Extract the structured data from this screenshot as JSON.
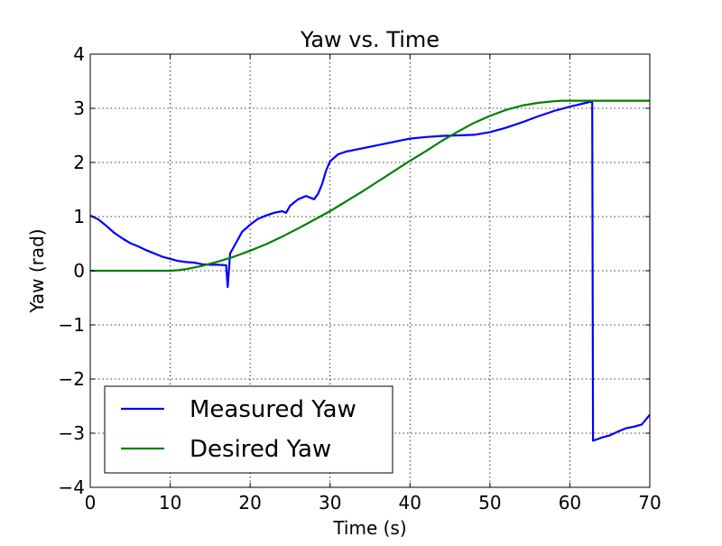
{
  "chart_data": {
    "type": "line",
    "title": "Yaw vs. Time",
    "xlabel": "Time (s)",
    "ylabel": "Yaw (rad)",
    "xlim": [
      0,
      70
    ],
    "ylim": [
      -4,
      4
    ],
    "xticks": [
      0,
      10,
      20,
      30,
      40,
      50,
      60,
      70
    ],
    "yticks": [
      4,
      3,
      2,
      1,
      0,
      -1,
      -2,
      -3,
      -4
    ],
    "xtick_labels": [
      "0",
      "10",
      "20",
      "30",
      "40",
      "50",
      "60",
      "70"
    ],
    "ytick_labels": [
      "4",
      "3",
      "2",
      "1",
      "0",
      "−1",
      "−2",
      "−3",
      "−4"
    ],
    "grid": true,
    "legend_position": "lower-left",
    "series": [
      {
        "name": "Measured Yaw",
        "color": "#0000ff",
        "points": [
          [
            0,
            1.02
          ],
          [
            1,
            0.95
          ],
          [
            2,
            0.83
          ],
          [
            3,
            0.7
          ],
          [
            4,
            0.6
          ],
          [
            5,
            0.51
          ],
          [
            6,
            0.45
          ],
          [
            7,
            0.38
          ],
          [
            8,
            0.32
          ],
          [
            9,
            0.26
          ],
          [
            10,
            0.22
          ],
          [
            11,
            0.18
          ],
          [
            12,
            0.16
          ],
          [
            13,
            0.15
          ],
          [
            14,
            0.12
          ],
          [
            15,
            0.11
          ],
          [
            16,
            0.11
          ],
          [
            17,
            0.1
          ],
          [
            17.2,
            -0.3
          ],
          [
            17.5,
            0.32
          ],
          [
            18,
            0.45
          ],
          [
            19,
            0.72
          ],
          [
            20,
            0.85
          ],
          [
            21,
            0.96
          ],
          [
            22,
            1.02
          ],
          [
            23,
            1.07
          ],
          [
            24,
            1.1
          ],
          [
            24.5,
            1.07
          ],
          [
            25,
            1.2
          ],
          [
            26,
            1.32
          ],
          [
            27,
            1.38
          ],
          [
            28,
            1.32
          ],
          [
            28.5,
            1.42
          ],
          [
            29,
            1.6
          ],
          [
            29.5,
            1.85
          ],
          [
            30,
            2.02
          ],
          [
            31,
            2.15
          ],
          [
            32,
            2.2
          ],
          [
            34,
            2.26
          ],
          [
            36,
            2.32
          ],
          [
            38,
            2.38
          ],
          [
            40,
            2.44
          ],
          [
            42,
            2.47
          ],
          [
            44,
            2.49
          ],
          [
            46,
            2.5
          ],
          [
            48,
            2.51
          ],
          [
            50,
            2.56
          ],
          [
            52,
            2.64
          ],
          [
            54,
            2.74
          ],
          [
            56,
            2.85
          ],
          [
            58,
            2.95
          ],
          [
            60,
            3.03
          ],
          [
            62,
            3.1
          ],
          [
            62.8,
            3.13
          ],
          [
            62.9,
            -3.14
          ],
          [
            64,
            -3.08
          ],
          [
            65,
            -3.04
          ],
          [
            66,
            -2.97
          ],
          [
            67,
            -2.91
          ],
          [
            68,
            -2.88
          ],
          [
            69,
            -2.84
          ],
          [
            70,
            -2.66
          ]
        ]
      },
      {
        "name": "Desired Yaw",
        "color": "#008000",
        "points": [
          [
            0,
            0
          ],
          [
            5,
            0
          ],
          [
            10,
            0
          ],
          [
            11,
            0.01
          ],
          [
            12,
            0.03
          ],
          [
            13,
            0.06
          ],
          [
            14,
            0.09
          ],
          [
            15,
            0.13
          ],
          [
            16,
            0.17
          ],
          [
            18,
            0.26
          ],
          [
            20,
            0.37
          ],
          [
            22,
            0.49
          ],
          [
            24,
            0.63
          ],
          [
            26,
            0.78
          ],
          [
            28,
            0.94
          ],
          [
            30,
            1.1
          ],
          [
            32,
            1.28
          ],
          [
            34,
            1.46
          ],
          [
            36,
            1.65
          ],
          [
            38,
            1.84
          ],
          [
            40,
            2.03
          ],
          [
            42,
            2.21
          ],
          [
            44,
            2.4
          ],
          [
            46,
            2.57
          ],
          [
            48,
            2.73
          ],
          [
            50,
            2.86
          ],
          [
            52,
            2.97
          ],
          [
            54,
            3.05
          ],
          [
            56,
            3.1
          ],
          [
            58,
            3.13
          ],
          [
            59,
            3.14
          ],
          [
            60,
            3.14
          ],
          [
            65,
            3.14
          ],
          [
            70,
            3.14
          ]
        ]
      }
    ]
  }
}
